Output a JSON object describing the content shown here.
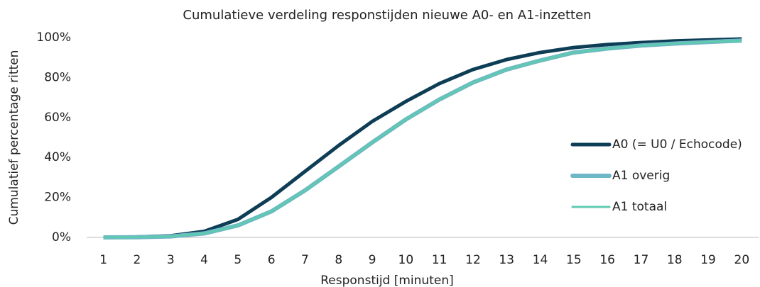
{
  "chart_data": {
    "type": "line",
    "title": "Cumulatieve verdeling responstijden nieuwe A0- en A1-inzetten",
    "xlabel": "Responstijd [minuten]",
    "ylabel": "Cumulatief percentage ritten",
    "categories": [
      "1",
      "2",
      "3",
      "4",
      "5",
      "6",
      "7",
      "8",
      "9",
      "10",
      "11",
      "12",
      "13",
      "14",
      "15",
      "16",
      "17",
      "18",
      "19",
      "20"
    ],
    "series": [
      {
        "name": "A0 (= U0 / Echocode)",
        "color": "#0e3d56",
        "width": 5,
        "values": [
          0,
          0.2,
          0.8,
          3,
          9,
          20,
          33,
          46,
          58,
          68,
          77,
          84,
          89,
          92.5,
          95,
          96.5,
          97.5,
          98.3,
          98.8,
          99.3
        ]
      },
      {
        "name": "A1 overig",
        "color": "#6fb6c6",
        "width": 6,
        "values": [
          0,
          0.1,
          0.5,
          2,
          6,
          13,
          23.5,
          35.5,
          47.5,
          59,
          69,
          77.5,
          84,
          88.5,
          92.5,
          94.5,
          96,
          97,
          97.8,
          98.5
        ]
      },
      {
        "name": "A1 totaal",
        "color": "#5fcab0",
        "width": 3,
        "values": [
          0,
          0.1,
          0.5,
          2,
          6,
          13,
          23.5,
          35.5,
          47.5,
          59,
          69,
          77.5,
          84,
          88.5,
          92.5,
          94.5,
          96,
          97,
          97.8,
          98.5
        ]
      }
    ],
    "ylim": [
      0,
      100
    ],
    "yticks": [
      {
        "value": 0,
        "label": "0%"
      },
      {
        "value": 20,
        "label": "20%"
      },
      {
        "value": 40,
        "label": "40%"
      },
      {
        "value": 60,
        "label": "60%"
      },
      {
        "value": 80,
        "label": "80%"
      },
      {
        "value": 100,
        "label": "100%"
      }
    ],
    "grid": false,
    "legend": "right"
  }
}
